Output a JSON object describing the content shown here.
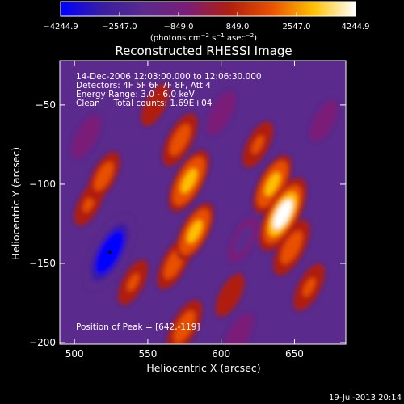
{
  "colorbar": {
    "tick_labels": [
      "−4244.9",
      "−2547.0",
      "−849.0",
      "849.0",
      "2547.0",
      "4244.9"
    ],
    "tick_values": [
      -4244.9,
      -2547.0,
      -849.0,
      849.0,
      2547.0,
      4244.9
    ],
    "range": [
      -4244.9,
      4244.9
    ],
    "unit_prefix": "(photons cm",
    "unit_exp1": "−2",
    "unit_mid": " s",
    "unit_exp2": "−1",
    "unit_mid2": " asec",
    "unit_exp3": "−2",
    "unit_suffix": ")",
    "colors": [
      "#0000ff",
      "#3a1ea0",
      "#5c2a8c",
      "#7a1e78",
      "#b01e10",
      "#e85000",
      "#ffc000",
      "#ffffff"
    ]
  },
  "chart_data": {
    "type": "heatmap",
    "title": "Reconstructed RHESSI Image",
    "xlabel": "Heliocentric X (arcsec)",
    "ylabel": "Heliocentric Y (arcsec)",
    "xlim": [
      490,
      685
    ],
    "ylim": [
      -201,
      -22
    ],
    "x_ticks": [
      500,
      550,
      600,
      650
    ],
    "x_tick_labels": [
      "500",
      "550",
      "600",
      "650"
    ],
    "y_ticks": [
      -50,
      -100,
      -150,
      -200
    ],
    "y_tick_labels": [
      "−50",
      "−100",
      "−150",
      "−200"
    ],
    "info_lines": [
      "14-Dec-2006 12:03:00.000 to 12:06:30.000",
      "Detectors: 4F 5F 6F 7F 8F, Att 4",
      "Energy Range: 3.0 - 6.0 keV",
      "Clean     Total counts: 1.69E+04"
    ],
    "peak_label": "Position of Peak = [642,-119]",
    "peak": [
      642,
      -119
    ],
    "minimum_marker": [
      524,
      -143
    ],
    "blobs": [
      {
        "x": 642,
        "y": -119,
        "value": 4244.9
      },
      {
        "x": 635,
        "y": -100,
        "value": 2700
      },
      {
        "x": 648,
        "y": -140,
        "value": 2400
      },
      {
        "x": 660,
        "y": -165,
        "value": 1500
      },
      {
        "x": 625,
        "y": -75,
        "value": 1400
      },
      {
        "x": 578,
        "y": -98,
        "value": 3000
      },
      {
        "x": 572,
        "y": -72,
        "value": 2100
      },
      {
        "x": 582,
        "y": -130,
        "value": 2600
      },
      {
        "x": 568,
        "y": -150,
        "value": 2000
      },
      {
        "x": 575,
        "y": -190,
        "value": 2200
      },
      {
        "x": 520,
        "y": -95,
        "value": 1700
      },
      {
        "x": 510,
        "y": -112,
        "value": 1300
      },
      {
        "x": 540,
        "y": -162,
        "value": 1300
      },
      {
        "x": 555,
        "y": -50,
        "value": 1000
      },
      {
        "x": 606,
        "y": -170,
        "value": 1100
      },
      {
        "x": 524,
        "y": -143,
        "value": -4244.9
      },
      {
        "x": 508,
        "y": -70,
        "value": -1200
      },
      {
        "x": 615,
        "y": -135,
        "value": -1400
      },
      {
        "x": 600,
        "y": -55,
        "value": -1200
      },
      {
        "x": 670,
        "y": -60,
        "value": -1000
      },
      {
        "x": 612,
        "y": -195,
        "value": -1200
      }
    ]
  },
  "timestamp": "19-Jul-2013 20:14"
}
